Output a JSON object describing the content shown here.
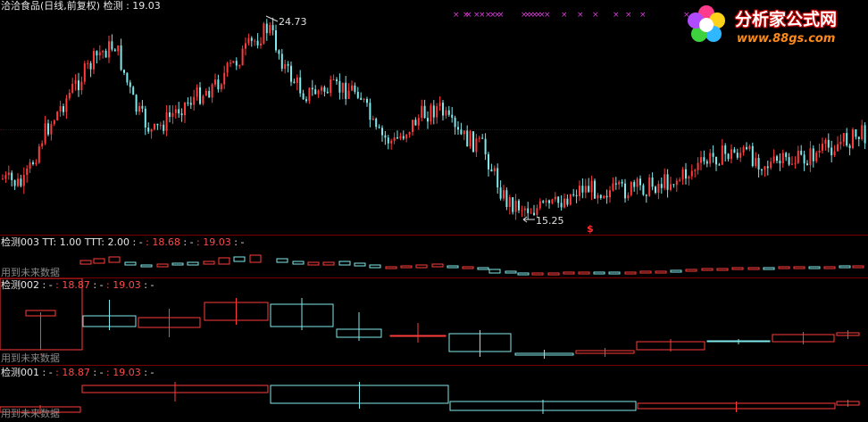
{
  "main": {
    "stock_name": "洽洽食品(日线,前复权)",
    "indicator_name": "检测",
    "indicator_value": ": 19.03",
    "high_label": "24.73",
    "low_label": "15.25",
    "signal_mark": "$",
    "future_note": "用到未来数据"
  },
  "pane3": {
    "name": "检测003",
    "tt": "TT: 1.00",
    "ttt": "TTT: 2.00",
    "v1": ": -",
    "v2": ": 18.68",
    "v3": ": -",
    "v4": ": 19.03",
    "v5": ": -",
    "future_note": "用到未来数据"
  },
  "pane2": {
    "name": "检测002",
    "v1": ": -",
    "v2": ": 18.87",
    "v3": ": -",
    "v4": ": 19.03",
    "v5": ": -",
    "future_note": "用到未来数据"
  },
  "pane1": {
    "name": "检测001",
    "v1": ": -",
    "v2": ": 18.87",
    "v3": ": -",
    "v4": ": 19.03",
    "v5": ": -",
    "future_note": "用到未来数据"
  },
  "logo": {
    "text": "分析家公式网",
    "url": "www.88gs.com"
  },
  "colors": {
    "up": "#ff3b3b",
    "down": "#7fe8ea",
    "divider": "#7a0000",
    "marker": "#d93bd9"
  }
}
